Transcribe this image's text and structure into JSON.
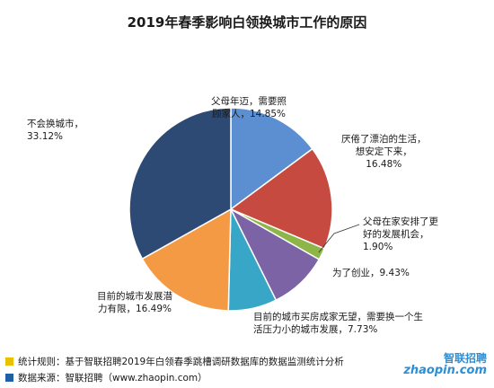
{
  "chart_data": {
    "type": "pie",
    "title": "2019年春季影响白领换城市工作的原因",
    "slices": [
      {
        "label_lines": [
          "父母年迈，需要照",
          "顾家人，14.85%"
        ],
        "value": 14.85,
        "color": "#5b8fd1"
      },
      {
        "label_lines": [
          "厌倦了漂泊的生活，",
          "想安定下来，",
          "16.48%"
        ],
        "value": 16.48,
        "color": "#c64a3f"
      },
      {
        "label_lines": [
          "父母在家安排了更",
          "好的发展机会，",
          "1.90%"
        ],
        "value": 1.9,
        "color": "#8db547"
      },
      {
        "label_lines": [
          "为了创业，9.43%"
        ],
        "value": 9.43,
        "color": "#7b63a6"
      },
      {
        "label_lines": [
          "目前的城市买房成家无望，需要换一个生",
          "活压力小的城市发展，7.73%"
        ],
        "value": 7.73,
        "color": "#38a6c6"
      },
      {
        "label_lines": [
          "目前的城市发展潜",
          "力有限，16.49%"
        ],
        "value": 16.49,
        "color": "#f59a44"
      },
      {
        "label_lines": [
          "不会换城市，",
          "33.12%"
        ],
        "value": 33.12,
        "color": "#2d4a75"
      }
    ]
  },
  "footer": {
    "rule": "统计规则：基于智联招聘2019年白领春季跳槽调研数据库的数据监测统计分析",
    "source": "数据来源：智联招聘（www.zhaopin.com）",
    "rule_marker_color": "#e8c200",
    "source_marker_color": "#1f5fa8"
  },
  "logo": {
    "cn": "智联招聘",
    "en": "zhaopin.com"
  }
}
